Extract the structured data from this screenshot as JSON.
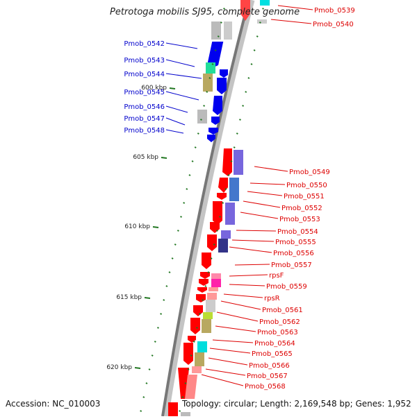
{
  "title": "Petrotoga mobilis SJ95, complete genome",
  "accession": "Accession: NC_010003",
  "topology": "Topology: circular; Length: 2,169,548 bp; Genes: 1,952",
  "kbp_ticks": [
    {
      "label": "600 kbp",
      "kbp": 600
    },
    {
      "label": "605 kbp",
      "kbp": 605
    },
    {
      "label": "610 kbp",
      "kbp": 610
    },
    {
      "label": "615 kbp",
      "kbp": 615
    },
    {
      "label": "620 kbp",
      "kbp": 620
    }
  ],
  "left_genes": [
    {
      "name": "Pmob_0542",
      "color": "#0000dd"
    },
    {
      "name": "Pmob_0543",
      "color": "#0000dd"
    },
    {
      "name": "Pmob_0544",
      "color": "#0000dd"
    },
    {
      "name": "Pmob_0545",
      "color": "#0000dd"
    },
    {
      "name": "Pmob_0546",
      "color": "#0000dd"
    },
    {
      "name": "Pmob_0547",
      "color": "#0000dd"
    },
    {
      "name": "Pmob_0548",
      "color": "#0000dd"
    }
  ],
  "right_genes": [
    {
      "name": "Pmob_0539"
    },
    {
      "name": "Pmob_0540"
    },
    {
      "name": "Pmob_0549"
    },
    {
      "name": "Pmob_0550"
    },
    {
      "name": "Pmob_0551"
    },
    {
      "name": "Pmob_0552"
    },
    {
      "name": "Pmob_0553"
    },
    {
      "name": "Pmob_0554"
    },
    {
      "name": "Pmob_0555"
    },
    {
      "name": "Pmob_0556"
    },
    {
      "name": "Pmob_0557"
    },
    {
      "name": "rpsF"
    },
    {
      "name": "Pmob_0559"
    },
    {
      "name": "rpsR"
    },
    {
      "name": "Pmob_0561"
    },
    {
      "name": "Pmob_0562"
    },
    {
      "name": "Pmob_0563"
    },
    {
      "name": "Pmob_0564"
    },
    {
      "name": "Pmob_0565"
    },
    {
      "name": "Pmob_0566"
    },
    {
      "name": "Pmob_0567"
    },
    {
      "name": "Pmob_0568"
    }
  ],
  "colors": {
    "forward_strand": "#ff0000",
    "reverse_strand": "#0000ee",
    "label_right": "#dd0000",
    "label_left": "#0000cc",
    "tick": "#227722"
  }
}
